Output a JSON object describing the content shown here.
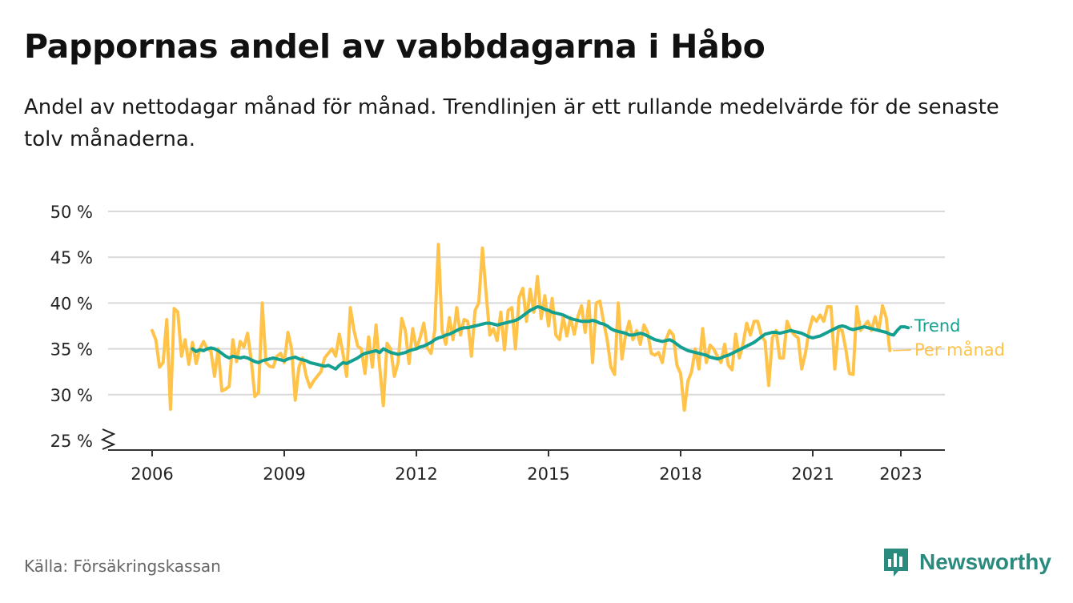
{
  "header": {
    "title": "Pappornas andel av vabbdagarna i Håbo",
    "subtitle": "Andel av nettodagar månad för månad. Trendlinjen är ett rullande medelvärde för de senaste tolv månaderna."
  },
  "footer": {
    "source": "Källa: Försäkringskassan",
    "brand": "Newsworthy"
  },
  "colors": {
    "trend": "#14a090",
    "monthly": "#ffc34a",
    "grid": "#d9d9d9",
    "axis": "#333333",
    "brand": "#2b8a7e"
  },
  "chart_data": {
    "type": "line",
    "title": "Pappornas andel av vabbdagarna i Håbo",
    "xlabel": "",
    "ylabel": "",
    "ylim": [
      25,
      50
    ],
    "y_break": true,
    "y_ticks": [
      25,
      30,
      35,
      40,
      45,
      50
    ],
    "y_tick_labels": [
      "25 %",
      "30 %",
      "35 %",
      "40 %",
      "45 %",
      "50 %"
    ],
    "x_ticks": [
      2006,
      2009,
      2012,
      2015,
      2018,
      2021,
      2023
    ],
    "x_tick_labels": [
      "2006",
      "2009",
      "2012",
      "2015",
      "2018",
      "2021",
      "2023"
    ],
    "x_range": [
      2005.0,
      2024.0
    ],
    "grid": true,
    "legend": "end-of-line labels, right",
    "series": [
      {
        "name": "Per månad",
        "color": "#ffc34a",
        "x_start": 2006.0,
        "x_step": 0.0833333,
        "values": [
          37.0,
          36.0,
          33.0,
          33.5,
          38.2,
          28.4,
          39.4,
          39.0,
          34.2,
          36.0,
          33.3,
          35.7,
          33.4,
          35.0,
          35.8,
          35.0,
          34.8,
          32.0,
          35.0,
          30.4,
          30.6,
          30.9,
          36.0,
          33.6,
          35.8,
          35.2,
          36.7,
          33.8,
          29.8,
          30.2,
          40.0,
          33.5,
          33.1,
          33.0,
          34.2,
          34.5,
          33.5,
          36.8,
          35.0,
          29.4,
          33.0,
          34.0,
          32.0,
          30.8,
          31.5,
          32.0,
          32.5,
          34.0,
          34.5,
          35.0,
          34.2,
          36.6,
          34.5,
          32.0,
          39.5,
          37.0,
          35.3,
          35.0,
          32.3,
          36.3,
          33.0,
          37.6,
          33.0,
          28.8,
          35.6,
          35.0,
          32.0,
          33.5,
          38.3,
          37.0,
          33.4,
          37.2,
          35.0,
          36.2,
          37.8,
          35.1,
          34.5,
          37.0,
          46.4,
          37.0,
          35.5,
          38.4,
          36.0,
          39.5,
          36.5,
          38.2,
          38.0,
          34.2,
          39.2,
          40.0,
          46.0,
          41.0,
          36.5,
          37.2,
          35.9,
          39.0,
          34.9,
          39.2,
          39.5,
          35.0,
          40.6,
          41.6,
          38.0,
          41.5,
          39.0,
          42.9,
          38.3,
          40.8,
          37.5,
          40.5,
          36.5,
          36.0,
          38.5,
          36.4,
          38.4,
          36.6,
          38.5,
          39.7,
          36.8,
          40.2,
          33.5,
          40.0,
          40.2,
          38.0,
          36.0,
          33.0,
          32.2,
          40.0,
          33.9,
          36.5,
          38.0,
          36.0,
          37.0,
          35.5,
          37.6,
          36.8,
          34.5,
          34.3,
          34.6,
          33.5,
          36.0,
          37.0,
          36.5,
          33.2,
          32.3,
          28.3,
          31.5,
          32.5,
          35.0,
          32.8,
          37.2,
          33.5,
          35.4,
          35.0,
          34.2,
          33.5,
          35.5,
          33.2,
          32.7,
          36.6,
          34.0,
          35.5,
          37.8,
          36.5,
          38.0,
          38.0,
          36.5,
          35.8,
          31.0,
          36.2,
          37.0,
          34.0,
          34.0,
          38.0,
          37.0,
          36.5,
          36.2,
          32.8,
          34.5,
          37.0,
          38.5,
          38.0,
          38.7,
          38.0,
          39.6,
          39.6,
          32.8,
          37.2,
          37.0,
          35.0,
          32.3,
          32.2,
          39.6,
          37.0,
          37.5,
          38.0,
          37.0,
          38.5,
          37.0,
          39.7,
          38.4,
          34.8
        ]
      },
      {
        "name": "Trend",
        "color": "#14a090",
        "x_start": 2006.917,
        "x_step": 0.0833333,
        "values": [
          35.0,
          34.7,
          34.9,
          34.8,
          35.0,
          35.1,
          35.0,
          34.8,
          34.5,
          34.2,
          34.0,
          34.2,
          34.1,
          34.0,
          34.1,
          34.0,
          33.8,
          33.6,
          33.5,
          33.7,
          33.8,
          33.9,
          34.0,
          33.9,
          33.8,
          33.7,
          33.9,
          34.0,
          34.1,
          33.9,
          33.8,
          33.7,
          33.5,
          33.4,
          33.3,
          33.2,
          33.1,
          33.2,
          33.0,
          32.8,
          33.2,
          33.5,
          33.4,
          33.6,
          33.8,
          34.0,
          34.3,
          34.5,
          34.6,
          34.7,
          34.8,
          34.6,
          35.0,
          34.8,
          34.6,
          34.5,
          34.4,
          34.5,
          34.6,
          34.8,
          34.9,
          35.0,
          35.2,
          35.3,
          35.5,
          35.7,
          36.0,
          36.2,
          36.3,
          36.5,
          36.6,
          36.8,
          37.0,
          37.2,
          37.3,
          37.3,
          37.4,
          37.5,
          37.6,
          37.7,
          37.8,
          37.8,
          37.7,
          37.6,
          37.7,
          37.8,
          37.9,
          38.0,
          38.1,
          38.3,
          38.6,
          38.9,
          39.2,
          39.4,
          39.6,
          39.5,
          39.3,
          39.2,
          39.0,
          38.9,
          38.8,
          38.7,
          38.5,
          38.3,
          38.2,
          38.1,
          38.0,
          38.0,
          38.0,
          38.1,
          38.0,
          37.8,
          37.7,
          37.5,
          37.2,
          37.0,
          36.9,
          36.8,
          36.7,
          36.5,
          36.5,
          36.6,
          36.7,
          36.6,
          36.4,
          36.2,
          36.0,
          35.9,
          35.8,
          35.9,
          36.0,
          35.8,
          35.5,
          35.2,
          35.0,
          34.8,
          34.7,
          34.6,
          34.5,
          34.4,
          34.3,
          34.1,
          34.0,
          33.9,
          34.0,
          34.2,
          34.3,
          34.5,
          34.7,
          34.9,
          35.1,
          35.3,
          35.5,
          35.7,
          36.0,
          36.3,
          36.6,
          36.7,
          36.8,
          36.8,
          36.7,
          36.8,
          36.9,
          37.0,
          36.9,
          36.8,
          36.7,
          36.5,
          36.3,
          36.2,
          36.3,
          36.4,
          36.6,
          36.8,
          37.0,
          37.2,
          37.4,
          37.5,
          37.4,
          37.2,
          37.1,
          37.2,
          37.3,
          37.4,
          37.3,
          37.2,
          37.1,
          37.0,
          36.9,
          36.8,
          36.6,
          36.5,
          37.0,
          37.4,
          37.4,
          37.3
        ]
      }
    ]
  }
}
